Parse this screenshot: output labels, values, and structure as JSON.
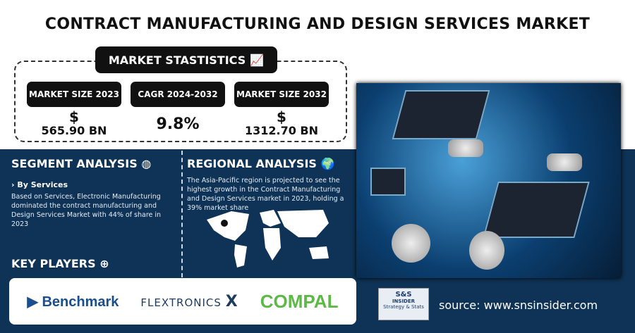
{
  "title": "CONTRACT MANUFACTURING AND DESIGN SERVICES MARKET",
  "stats": {
    "heading": "MARKET STASTISTICS",
    "items": [
      {
        "label": "MARKET SIZE 2023",
        "currency": "$",
        "value": "565.90 BN"
      },
      {
        "label": "CAGR 2024-2032",
        "currency": "",
        "value": "9.8%"
      },
      {
        "label": "MARKET SIZE 2032",
        "currency": "$",
        "value": "1312.70 BN"
      }
    ]
  },
  "segment": {
    "heading": "SEGMENT ANALYSIS",
    "sub": "› By Services",
    "text": "Based on Services, Electronic Manufacturing dominated the contract manufacturing and Design Services Market with 44% of share in 2023"
  },
  "regional": {
    "heading": "REGIONAL ANALYSIS",
    "text": "The Asia-Pacific region is projected to see the highest growth in the Contract Manufacturing and Design Services market in 2023, holding a 39% market share"
  },
  "key_players": {
    "heading": "KEY PLAYERS",
    "players": [
      "Benchmark",
      "FLEXTRONICS",
      "COMPAL"
    ]
  },
  "logo": {
    "line1": "S&S",
    "line2": "INSIDER",
    "line3": "Strategy & Stats"
  },
  "source": "source: www.snsinsider.com",
  "colors": {
    "navy": "#0e3356",
    "compal_green": "#5cb946",
    "benchmark_blue": "#1a4e8c"
  }
}
